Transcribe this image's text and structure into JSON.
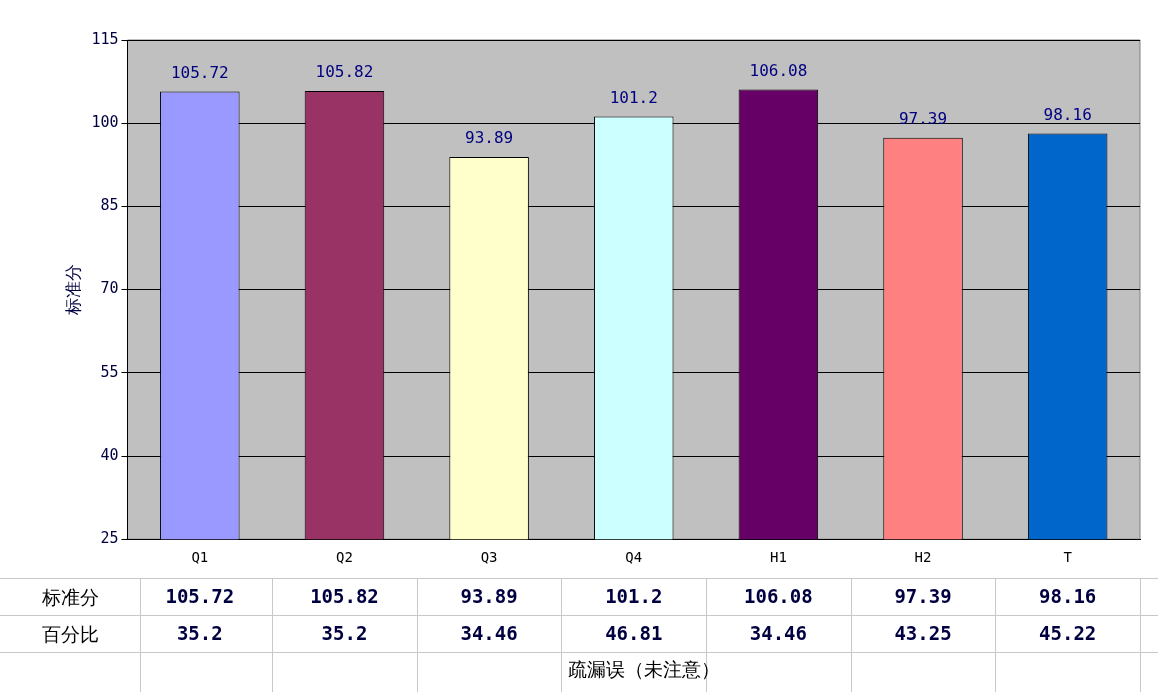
{
  "chart_data": {
    "type": "bar",
    "ylabel": "标准分",
    "xlabel": "疏漏误（未注意）",
    "categories": [
      "Q1",
      "Q2",
      "Q3",
      "Q4",
      "H1",
      "H2",
      "T"
    ],
    "series": [
      {
        "name": "标准分",
        "colors": [
          "#9999ff",
          "#993366",
          "#ffffcc",
          "#ccffff",
          "#660066",
          "#ff8080",
          "#0066cc"
        ],
        "values": [
          105.72,
          105.82,
          93.89,
          101.2,
          106.08,
          97.39,
          98.16
        ],
        "value_labels": [
          "105.72",
          "105.82",
          "93.89",
          "101.2",
          "106.08",
          "97.39",
          "98.16"
        ]
      }
    ],
    "ylim": [
      25,
      115
    ],
    "yticks": [
      25,
      40,
      55,
      70,
      85,
      100,
      115
    ],
    "grid": "y",
    "legend": false,
    "annotations": [
      "105.72",
      "105.82",
      "93.89",
      "101.2",
      "106.08",
      "97.39",
      "98.16",
      "百分比",
      "35.2",
      "35.2",
      "34.46",
      "46.81",
      "34.46",
      "43.25",
      "45.22"
    ]
  }
}
